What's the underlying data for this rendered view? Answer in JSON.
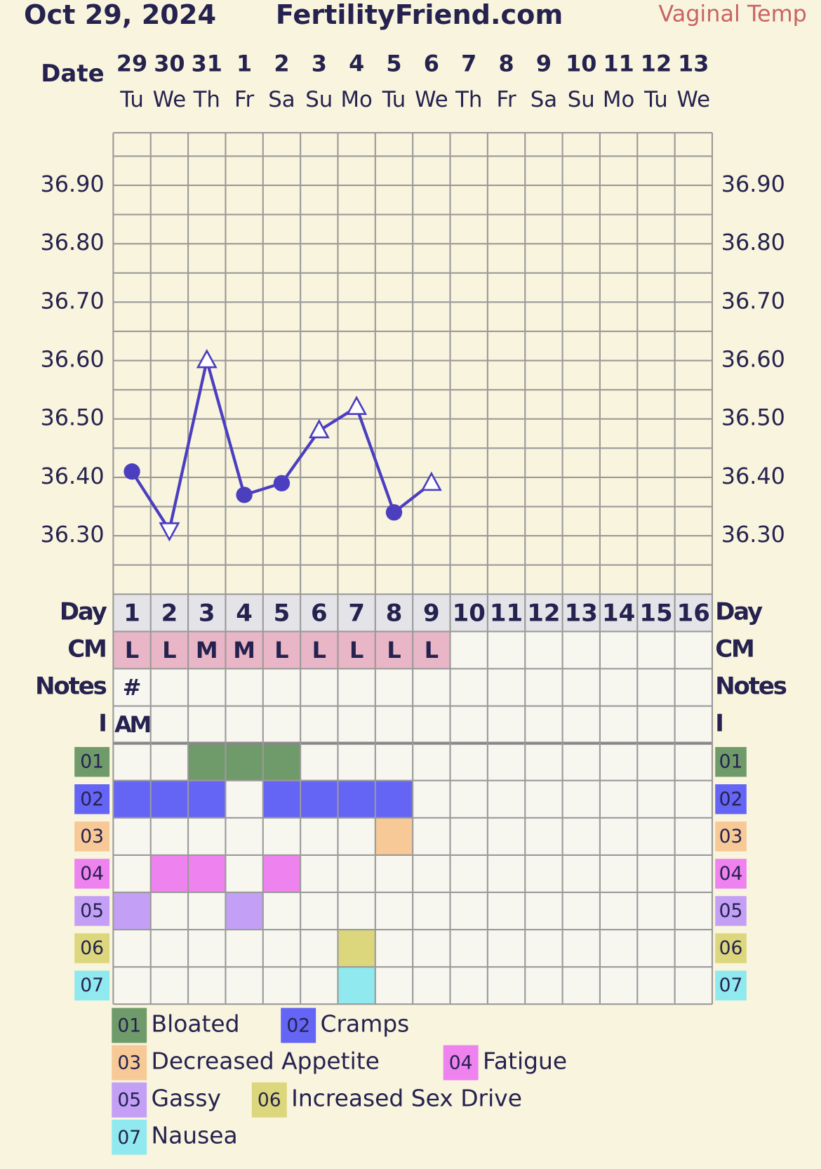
{
  "header": {
    "date": "Oct 29, 2024",
    "site": "FertilityFriend.com",
    "temp_type": "Vaginal Temp"
  },
  "chart_data": {
    "type": "line",
    "dates_label": "Date",
    "dates": [
      "29",
      "30",
      "31",
      "1",
      "2",
      "3",
      "4",
      "5",
      "6",
      "7",
      "8",
      "9",
      "10",
      "11",
      "12",
      "13"
    ],
    "weekdays": [
      "Tu",
      "We",
      "Th",
      "Fr",
      "Sa",
      "Su",
      "Mo",
      "Tu",
      "We",
      "Th",
      "Fr",
      "Sa",
      "Su",
      "Mo",
      "Tu",
      "We"
    ],
    "ylim": [
      36.2,
      36.99
    ],
    "yticks": [
      {
        "value": 36.3,
        "label": "36.30"
      },
      {
        "value": 36.4,
        "label": "36.40"
      },
      {
        "value": 36.5,
        "label": "36.50"
      },
      {
        "value": 36.6,
        "label": "36.60"
      },
      {
        "value": 36.7,
        "label": "36.70"
      },
      {
        "value": 36.8,
        "label": "36.80"
      },
      {
        "value": 36.9,
        "label": "36.90"
      }
    ],
    "minor_yticks": [
      36.25,
      36.35,
      36.45,
      36.55,
      36.65,
      36.75,
      36.85,
      36.95
    ],
    "grid": true,
    "series": [
      {
        "color": "#4b3fc0",
        "values": [
          36.41,
          36.31,
          36.6,
          36.37,
          36.39,
          36.48,
          36.52,
          36.34,
          36.39,
          null,
          null,
          null,
          null,
          null,
          null,
          null
        ],
        "markers": [
          "circle",
          "triangle-down",
          "triangle-up",
          "circle",
          "circle",
          "triangle-up",
          "triangle-up",
          "circle",
          "triangle-up",
          null,
          null,
          null,
          null,
          null,
          null,
          null
        ]
      }
    ]
  },
  "rows": {
    "day_label": "Day",
    "days": [
      1,
      2,
      3,
      4,
      5,
      6,
      7,
      8,
      9,
      10,
      11,
      12,
      13,
      14,
      15,
      16
    ],
    "cm_label": "CM",
    "cm": [
      "L",
      "L",
      "M",
      "M",
      "L",
      "L",
      "L",
      "L",
      "L",
      null,
      null,
      null,
      null,
      null,
      null,
      null
    ],
    "notes_label": "Notes",
    "notes": [
      "#",
      null,
      null,
      null,
      null,
      null,
      null,
      null,
      null,
      null,
      null,
      null,
      null,
      null,
      null,
      null
    ],
    "i_label": "I",
    "i": [
      "AM",
      null,
      null,
      null,
      null,
      null,
      null,
      null,
      null,
      null,
      null,
      null,
      null,
      null,
      null,
      null
    ]
  },
  "symptoms": [
    {
      "code": "01",
      "name": "Bloated",
      "color": "#6f9b6a",
      "days": [
        3,
        4,
        5
      ]
    },
    {
      "code": "02",
      "name": "Cramps",
      "color": "#6464f5",
      "days": [
        1,
        2,
        3,
        5,
        6,
        7,
        8
      ]
    },
    {
      "code": "03",
      "name": "Decreased Appetite",
      "color": "#f6c996",
      "days": [
        8
      ]
    },
    {
      "code": "04",
      "name": "Fatigue",
      "color": "#ee82ee",
      "days": [
        2,
        3,
        5
      ]
    },
    {
      "code": "05",
      "name": "Gassy",
      "color": "#c3a0f5",
      "days": [
        1,
        4
      ]
    },
    {
      "code": "06",
      "name": "Increased Sex Drive",
      "color": "#dcd77c",
      "days": [
        7
      ]
    },
    {
      "code": "07",
      "name": "Nausea",
      "color": "#90e9ee",
      "days": [
        7
      ]
    }
  ]
}
